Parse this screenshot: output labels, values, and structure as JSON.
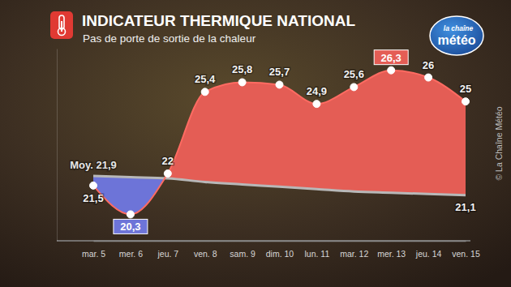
{
  "chart_data": {
    "type": "line",
    "title": "INDICATEUR THERMIQUE NATIONAL",
    "subtitle": "Pas de porte de sortie de la chaleur",
    "annotations": [
      "la chaîne",
      "météo",
      "© La Chaîne Météo"
    ],
    "categories": [
      "mar. 5",
      "mer. 6",
      "jeu. 7",
      "ven. 8",
      "sam. 9",
      "dim. 10",
      "lun. 11",
      "mar. 12",
      "mer. 13",
      "jeu. 14",
      "ven. 15"
    ],
    "series": [
      {
        "values": [
          21.5,
          20.3,
          22,
          25.4,
          25.8,
          25.7,
          24.9,
          25.6,
          26.3,
          26,
          25
        ],
        "value_labels": [
          "21,5",
          "20,3",
          "22",
          "25,4",
          "25,8",
          "25,7",
          "24,9",
          "25,6",
          "26,3",
          "26",
          "25"
        ],
        "color": "#e45d55"
      },
      {
        "values": [
          21.9,
          21.85,
          21.8,
          21.65,
          21.55,
          21.45,
          21.35,
          21.25,
          21.2,
          21.15,
          21.1
        ],
        "value_labels": [
          "Moy. 21,9",
          null,
          null,
          null,
          null,
          null,
          null,
          null,
          null,
          null,
          "21,1"
        ],
        "color": "#b8b8b8"
      }
    ],
    "ylim": [
      19.2,
      27.2
    ],
    "yticks": [],
    "tick_labels": "x",
    "data_labels": true,
    "grid": false
  }
}
